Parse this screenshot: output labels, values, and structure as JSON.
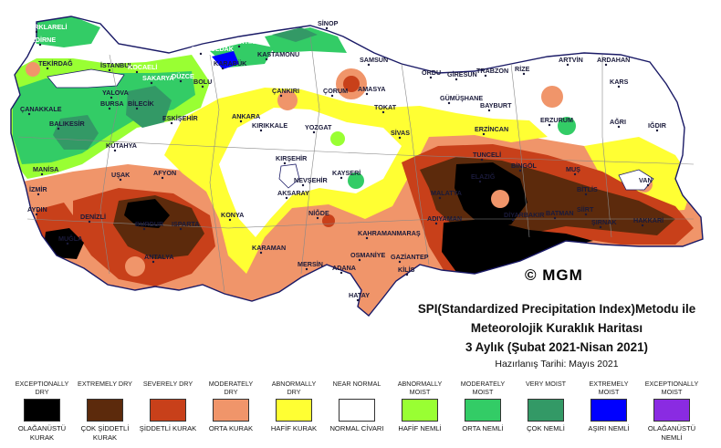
{
  "map": {
    "copyright": "© MGM",
    "cities": [
      "KIRKLARELİ",
      "EDİRNE",
      "TEKİRDAĞ",
      "İSTANBUL",
      "ÇANAKKALE",
      "BALIKESİR",
      "YALOVA",
      "BURSA",
      "BİLECİK",
      "KÜTAHYA",
      "MANİSA",
      "İZMİR",
      "UŞAK",
      "AFYON",
      "AYDIN",
      "DENİZLİ",
      "MUĞLA",
      "BURDUR",
      "ANTALYA",
      "ISPARTA",
      "KONYA",
      "KARAMAN",
      "MERSİN",
      "ADANA",
      "OSMANİYE",
      "HATAY",
      "KİLİS",
      "GAZİANTEP",
      "KAHRAMANMARAŞ",
      "ADIYAMAN",
      "MALATYA",
      "DİYARBAKIR",
      "BATMAN",
      "SİİRT",
      "ŞIRNAK",
      "HAKKARİ",
      "VAN",
      "BİTLİS",
      "MUŞ",
      "BİNGÖL",
      "TUNCELİ",
      "ELAZIĞ",
      "ERZİNCAN",
      "ERZURUM",
      "AĞRI",
      "IĞDIR",
      "KARS",
      "ARDAHAN",
      "ARTVİN",
      "RİZE",
      "TRABZON",
      "GİRESUN",
      "ORDU",
      "SAMSUN",
      "SİNOP",
      "KASTAMONU",
      "BARTIN",
      "ZONGULDAK",
      "KARABÜK",
      "BOLU",
      "DÜZCE",
      "SAKARYA",
      "KOCAELİ",
      "ÇANKIRI",
      "ÇORUM",
      "AMASYA",
      "TOKAT",
      "SİVAS",
      "YOZGAT",
      "KIRIKKALE",
      "ANKARA",
      "KIRŞEHİR",
      "NEVŞEHİR",
      "KAYSERİ",
      "AKSARAY",
      "NİĞDE",
      "GÜMÜŞHANE",
      "BAYBURT",
      "ESKİŞEHİR"
    ]
  },
  "title": {
    "line1": "SPI(Standardized Precipitation Index)Metodu ile",
    "line2": "Meteorolojik Kuraklık Haritası",
    "line3": "3 Aylık (Şubat 2021-Nisan 2021)",
    "date": "Hazırlanış Tarihi: Mayıs 2021"
  },
  "legend": [
    {
      "en": "EXCEPTIONALLY DRY",
      "tr": "OLAĞANÜSTÜ KURAK",
      "color": "#000000"
    },
    {
      "en": "EXTREMELY DRY",
      "tr": "ÇOK ŞİDDETLİ KURAK",
      "color": "#5c2a0c"
    },
    {
      "en": "SEVERELY DRY",
      "tr": "ŞİDDETLİ KURAK",
      "color": "#c8401a"
    },
    {
      "en": "MODERATELY DRY",
      "tr": "ORTA KURAK",
      "color": "#f0956a"
    },
    {
      "en": "ABNORMALLY DRY",
      "tr": "HAFİF KURAK",
      "color": "#ffff33"
    },
    {
      "en": "NEAR NORMAL",
      "tr": "NORMAL CİVARI",
      "color": "#ffffff"
    },
    {
      "en": "ABNORMALLY MOIST",
      "tr": "HAFİF NEMLİ",
      "color": "#99ff33"
    },
    {
      "en": "MODERATELY MOIST",
      "tr": "ORTA NEMLİ",
      "color": "#33cc66"
    },
    {
      "en": "VERY MOIST",
      "tr": "ÇOK NEMLİ",
      "color": "#339966"
    },
    {
      "en": "EXTREMELY MOIST",
      "tr": "AŞIRI NEMLİ",
      "color": "#0000ff"
    },
    {
      "en": "EXCEPTIONALLY MOIST",
      "tr": "OLAĞANÜSTÜ NEMLİ",
      "color": "#8a2be2"
    }
  ]
}
